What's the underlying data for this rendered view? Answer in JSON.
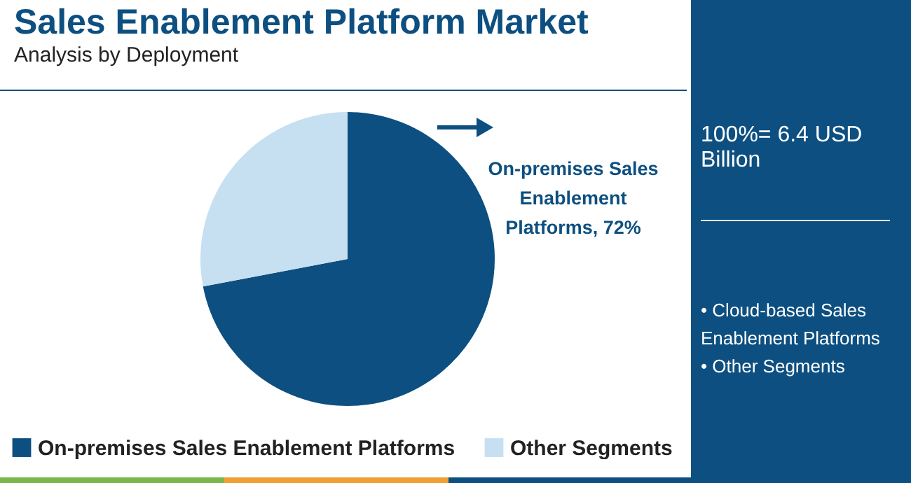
{
  "chart_data": {
    "type": "pie",
    "title": "Sales Enablement Platform Market",
    "subtitle": "Analysis by Deployment",
    "categories": [
      "On-premises Sales Enablement Platforms",
      "Other Segments"
    ],
    "values": [
      72,
      28
    ],
    "colors": [
      "#0d4f80",
      "#c6e0f1"
    ],
    "legend": "bottom",
    "annotations": [
      "On-premises Sales Enablement Platforms, 72%",
      "100%= 6.4 USD Billion",
      "• Cloud-based Sales Enablement Platforms",
      "• Other Segments"
    ]
  }
}
